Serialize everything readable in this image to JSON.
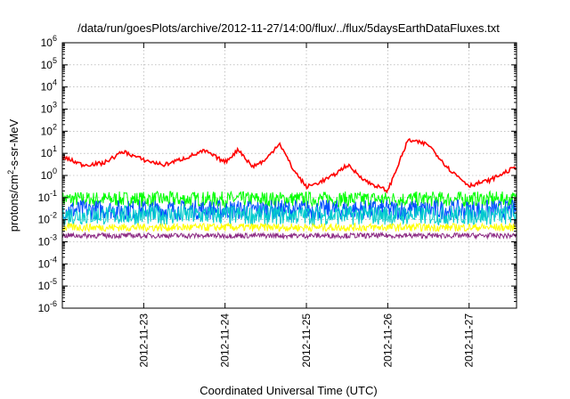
{
  "chart_data": {
    "type": "line",
    "title": "/data/run/goesPlots/archive/2012-11-27/14:00/flux/../flux/5daysEarthDataFluxes.txt",
    "xlabel": "Coordinated Universal Time (UTC)",
    "ylabel": "protons/cm²-s-sr-MeV",
    "ylabel_parts": {
      "before": "protons/cm",
      "sup": "2",
      "after": "-s-sr-MeV"
    },
    "y_scale": "log",
    "ylim": [
      1e-06,
      1000000.0
    ],
    "y_ticks": [
      {
        "value": 1e-06,
        "base": "10",
        "exp": "-6"
      },
      {
        "value": 1e-05,
        "base": "10",
        "exp": "-5"
      },
      {
        "value": 0.0001,
        "base": "10",
        "exp": "-4"
      },
      {
        "value": 0.001,
        "base": "10",
        "exp": "-3"
      },
      {
        "value": 0.01,
        "base": "10",
        "exp": "-2"
      },
      {
        "value": 0.1,
        "base": "10",
        "exp": "-1"
      },
      {
        "value": 1.0,
        "base": "10",
        "exp": "0"
      },
      {
        "value": 10.0,
        "base": "10",
        "exp": "1"
      },
      {
        "value": 100.0,
        "base": "10",
        "exp": "2"
      },
      {
        "value": 1000.0,
        "base": "10",
        "exp": "3"
      },
      {
        "value": 10000.0,
        "base": "10",
        "exp": "4"
      },
      {
        "value": 100000.0,
        "base": "10",
        "exp": "5"
      },
      {
        "value": 1000000.0,
        "base": "10",
        "exp": "6"
      }
    ],
    "xlim": [
      "2012-11-22 00:00",
      "2012-11-27 14:00"
    ],
    "x_ticks": [
      "2012-11-23",
      "2012-11-24",
      "2012-11-25",
      "2012-11-26",
      "2012-11-27"
    ],
    "grid": true,
    "legend": "none",
    "series": [
      {
        "color": "#ff0000",
        "x": [
          "2012-11-22 00:00",
          "2012-11-22 06:00",
          "2012-11-22 12:00",
          "2012-11-22 18:00",
          "2012-11-23 00:00",
          "2012-11-23 06:00",
          "2012-11-23 12:00",
          "2012-11-23 18:00",
          "2012-11-24 00:00",
          "2012-11-24 04:00",
          "2012-11-24 08:00",
          "2012-11-24 12:00",
          "2012-11-24 16:00",
          "2012-11-24 20:00",
          "2012-11-25 00:00",
          "2012-11-25 04:00",
          "2012-11-25 08:00",
          "2012-11-25 12:00",
          "2012-11-25 18:00",
          "2012-11-26 00:00",
          "2012-11-26 06:00",
          "2012-11-26 12:00",
          "2012-11-26 18:00",
          "2012-11-27 00:00",
          "2012-11-27 06:00",
          "2012-11-27 14:00"
        ],
        "y": [
          7,
          3,
          3.5,
          12,
          5,
          3,
          6,
          13,
          4,
          15,
          2.5,
          5,
          30,
          2,
          0.3,
          0.5,
          1,
          3,
          0.5,
          0.2,
          40,
          25,
          2,
          0.35,
          0.6,
          2.5
        ]
      },
      {
        "color": "#00ff00",
        "base": 0.085,
        "spread": 0.35
      },
      {
        "color": "#00cccc",
        "base": 0.016,
        "spread": 0.45
      },
      {
        "color": "#0050ff",
        "base": 0.028,
        "spread": 0.45
      },
      {
        "color": "#ffff00",
        "base": 0.0045,
        "spread": 0.18
      },
      {
        "color": "#8b2882",
        "base": 0.0019,
        "spread": 0.12
      }
    ]
  }
}
